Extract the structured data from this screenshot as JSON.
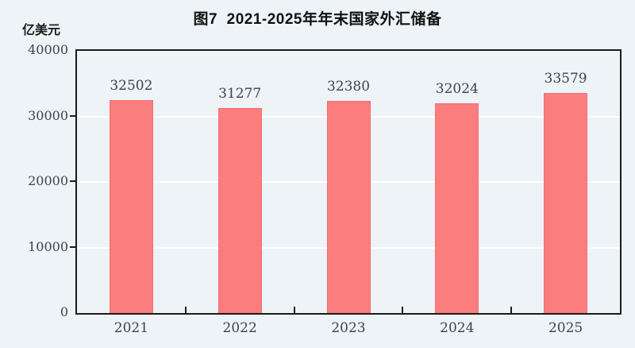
{
  "title": "图7  2021-2025年年末国家外汇储备",
  "unit_label": "亿美元",
  "colors": {
    "background": "#EDF3F6",
    "bar_fill": "#FB7D7D",
    "bar_border": "#F37070",
    "axis": "#1B1B1B",
    "gridline": "#FFFFFF",
    "number_text": "#3A4450",
    "title_text": "#111111"
  },
  "chart_data": {
    "type": "bar",
    "title": "图7 2021-2025年年末国家外汇储备",
    "ylabel": "亿美元",
    "categories": [
      "2021",
      "2022",
      "2023",
      "2024",
      "2025"
    ],
    "values": [
      32502,
      31277,
      32380,
      32024,
      33579
    ],
    "data_labels": [
      32502,
      31277,
      32380,
      32024,
      33579
    ],
    "ylim": [
      0,
      40000
    ],
    "yticks": [
      0,
      10000,
      20000,
      30000,
      40000
    ],
    "grid": "horizontal",
    "legend": "none"
  }
}
